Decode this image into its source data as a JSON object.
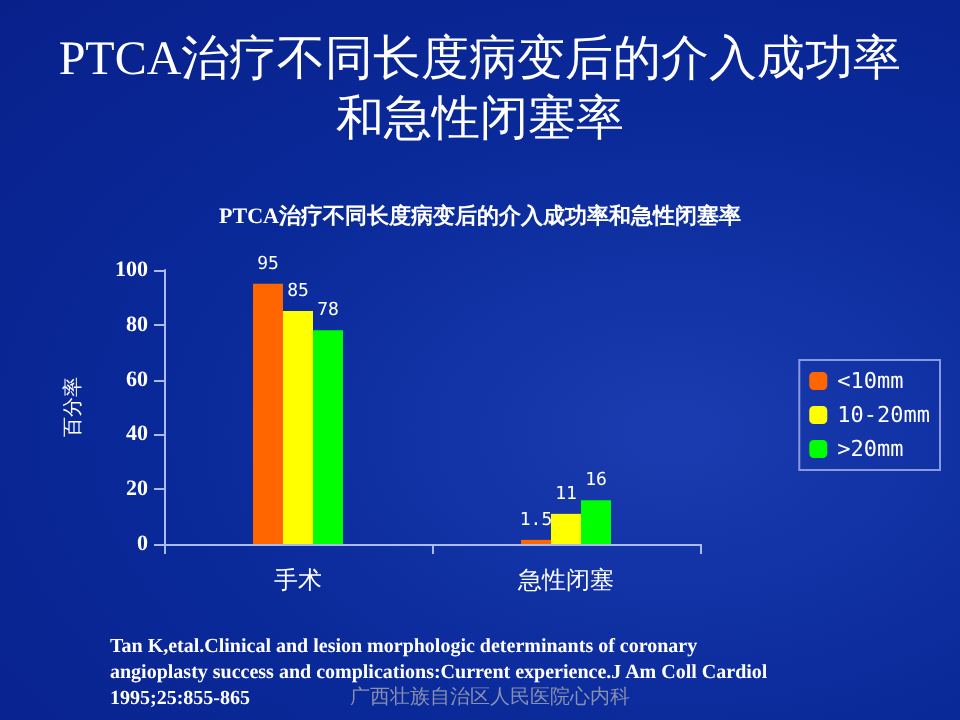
{
  "chart_data": {
    "type": "bar",
    "title": "PTCA治疗不同长度病变后的介入成功率和急性闭塞率",
    "subtitle": "PTCA治疗不同长度病变后的介入成功率和急性闭塞率",
    "ylabel": "百分率",
    "categories": [
      "手术",
      "急性闭塞"
    ],
    "series": [
      {
        "name": "<10mm",
        "color": "#ff6600",
        "values": [
          95,
          1.5
        ]
      },
      {
        "name": "10-20mm",
        "color": "#ffff00",
        "values": [
          85,
          11
        ]
      },
      {
        "name": ">20mm",
        "color": "#00ff00",
        "values": [
          78,
          16
        ]
      }
    ],
    "ylim": [
      0,
      100
    ],
    "yticks": [
      0,
      20,
      40,
      60,
      80,
      100
    ],
    "grid": false,
    "legend": "right",
    "data_labels": true,
    "annotations": [
      "Tan K,etal.Clinical and lesion morphologic determinants of coronary\nangioplasty success and complications:Current experience.J Am Coll Cardiol\n1995;25:855-865",
      "广西壮族自治区人民医院心内科"
    ]
  }
}
